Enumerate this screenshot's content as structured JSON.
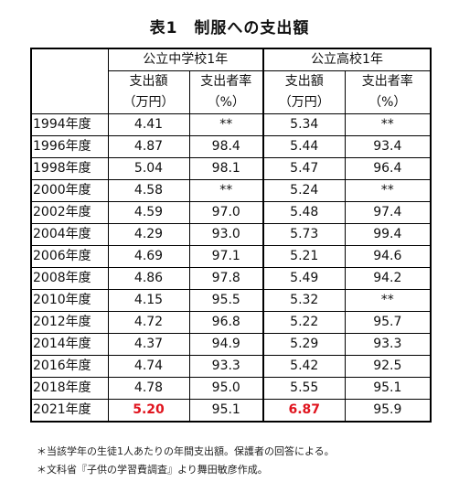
{
  "title": "表1　制服への支出額",
  "table": {
    "groups": [
      "公立中学校1年",
      "公立高校1年"
    ],
    "subheaders": [
      "支出額",
      "支出者率",
      "支出額",
      "支出者率"
    ],
    "units": [
      "（万円）",
      "（%）",
      "（万円）",
      "（%）"
    ],
    "rows": [
      {
        "year": "1994年度",
        "jh_amount": "4.41",
        "jh_rate": "**",
        "hs_amount": "5.34",
        "hs_rate": "**"
      },
      {
        "year": "1996年度",
        "jh_amount": "4.87",
        "jh_rate": "98.4",
        "hs_amount": "5.44",
        "hs_rate": "93.4"
      },
      {
        "year": "1998年度",
        "jh_amount": "5.04",
        "jh_rate": "98.1",
        "hs_amount": "5.47",
        "hs_rate": "96.4"
      },
      {
        "year": "2000年度",
        "jh_amount": "4.58",
        "jh_rate": "**",
        "hs_amount": "5.24",
        "hs_rate": "**"
      },
      {
        "year": "2002年度",
        "jh_amount": "4.59",
        "jh_rate": "97.0",
        "hs_amount": "5.48",
        "hs_rate": "97.4"
      },
      {
        "year": "2004年度",
        "jh_amount": "4.29",
        "jh_rate": "93.0",
        "hs_amount": "5.73",
        "hs_rate": "99.4"
      },
      {
        "year": "2006年度",
        "jh_amount": "4.69",
        "jh_rate": "97.1",
        "hs_amount": "5.21",
        "hs_rate": "94.6"
      },
      {
        "year": "2008年度",
        "jh_amount": "4.86",
        "jh_rate": "97.8",
        "hs_amount": "5.49",
        "hs_rate": "94.2"
      },
      {
        "year": "2010年度",
        "jh_amount": "4.15",
        "jh_rate": "95.5",
        "hs_amount": "5.32",
        "hs_rate": "**"
      },
      {
        "year": "2012年度",
        "jh_amount": "4.72",
        "jh_rate": "96.8",
        "hs_amount": "5.22",
        "hs_rate": "95.7"
      },
      {
        "year": "2014年度",
        "jh_amount": "4.37",
        "jh_rate": "94.9",
        "hs_amount": "5.29",
        "hs_rate": "93.3"
      },
      {
        "year": "2016年度",
        "jh_amount": "4.74",
        "jh_rate": "93.3",
        "hs_amount": "5.42",
        "hs_rate": "92.5"
      },
      {
        "year": "2018年度",
        "jh_amount": "4.78",
        "jh_rate": "95.0",
        "hs_amount": "5.55",
        "hs_rate": "95.1"
      },
      {
        "year": "2021年度",
        "jh_amount": "5.20",
        "jh_rate": "95.1",
        "hs_amount": "6.87",
        "hs_rate": "95.9"
      }
    ],
    "highlight_color": "#e0141e"
  },
  "notes": [
    "＊当該学年の生徒1人あたりの年間支出額。保護者の回答による。",
    "＊文科省『子供の学習費調査』より舞田敏彦作成。"
  ]
}
